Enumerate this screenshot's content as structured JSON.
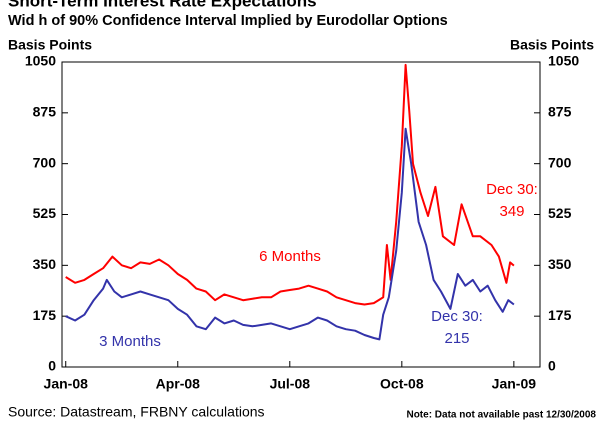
{
  "chart_data": {
    "type": "line",
    "title": "Short-Term Interest Rate Expectations",
    "subtitle": "Wid h of 90% Confidence Interval Implied by Eurodollar Options",
    "y_label": "Basis Points",
    "y2_label": "Basis Points",
    "xlim": [
      -0.1,
      12.7
    ],
    "xticks": [
      {
        "value": 0,
        "label": "Jan-08"
      },
      {
        "value": 3,
        "label": "Apr-08"
      },
      {
        "value": 6,
        "label": "Jul-08"
      },
      {
        "value": 9,
        "label": "Oct-08"
      },
      {
        "value": 12,
        "label": "Jan-09"
      }
    ],
    "ylim": [
      0,
      1050
    ],
    "yticks": [
      0,
      175,
      350,
      525,
      700,
      875,
      1050
    ],
    "y2lim": [
      0,
      1050
    ],
    "y2ticks": [
      0,
      175,
      350,
      525,
      700,
      875,
      1050
    ],
    "series": [
      {
        "name": "6 Months",
        "color": "#ff0000",
        "x": [
          0,
          0.25,
          0.5,
          0.75,
          1,
          1.25,
          1.5,
          1.75,
          2,
          2.25,
          2.5,
          2.75,
          3,
          3.25,
          3.5,
          3.75,
          4,
          4.25,
          4.5,
          4.75,
          5,
          5.25,
          5.5,
          5.75,
          6,
          6.25,
          6.5,
          6.75,
          7,
          7.25,
          7.5,
          7.75,
          8,
          8.25,
          8.5,
          8.6,
          8.7,
          8.85,
          9.0,
          9.1,
          9.2,
          9.3,
          9.5,
          9.7,
          9.9,
          10.1,
          10.4,
          10.6,
          10.9,
          11.1,
          11.4,
          11.6,
          11.8,
          11.9,
          12.0
        ],
        "values": [
          310,
          290,
          300,
          320,
          340,
          380,
          350,
          340,
          360,
          355,
          370,
          350,
          320,
          300,
          270,
          260,
          230,
          250,
          240,
          230,
          235,
          240,
          240,
          260,
          265,
          270,
          280,
          270,
          260,
          240,
          230,
          220,
          215,
          220,
          240,
          420,
          300,
          500,
          760,
          1040,
          880,
          700,
          600,
          520,
          620,
          450,
          420,
          560,
          450,
          450,
          420,
          380,
          290,
          360,
          349
        ]
      },
      {
        "name": "3 Months",
        "color": "#3333aa",
        "x": [
          0,
          0.25,
          0.5,
          0.75,
          1,
          1.1,
          1.3,
          1.5,
          1.75,
          2,
          2.25,
          2.5,
          2.75,
          3,
          3.25,
          3.5,
          3.75,
          4,
          4.25,
          4.5,
          4.75,
          5,
          5.25,
          5.5,
          5.75,
          6,
          6.25,
          6.5,
          6.75,
          7,
          7.25,
          7.5,
          7.75,
          8,
          8.25,
          8.4,
          8.5,
          8.65,
          8.85,
          9.0,
          9.1,
          9.25,
          9.45,
          9.65,
          9.85,
          10.05,
          10.3,
          10.5,
          10.7,
          10.9,
          11.1,
          11.3,
          11.5,
          11.7,
          11.85,
          12.0
        ],
        "values": [
          175,
          160,
          180,
          230,
          270,
          300,
          260,
          240,
          250,
          260,
          250,
          240,
          230,
          200,
          180,
          140,
          130,
          170,
          150,
          160,
          145,
          140,
          145,
          150,
          140,
          130,
          140,
          150,
          170,
          160,
          140,
          130,
          125,
          110,
          100,
          95,
          180,
          240,
          400,
          600,
          820,
          700,
          500,
          420,
          300,
          260,
          200,
          320,
          280,
          300,
          260,
          280,
          230,
          190,
          230,
          215
        ]
      }
    ],
    "annotations": [
      {
        "text": "Dec 30:",
        "color": "#ff0000"
      },
      {
        "text": "349",
        "color": "#ff0000"
      },
      {
        "text": "Dec 30:",
        "color": "#3333aa"
      },
      {
        "text": "215",
        "color": "#3333aa"
      }
    ],
    "source": "Source: Datastream, FRBNY calculations",
    "note": "Note: Data not available past 12/30/2008"
  }
}
